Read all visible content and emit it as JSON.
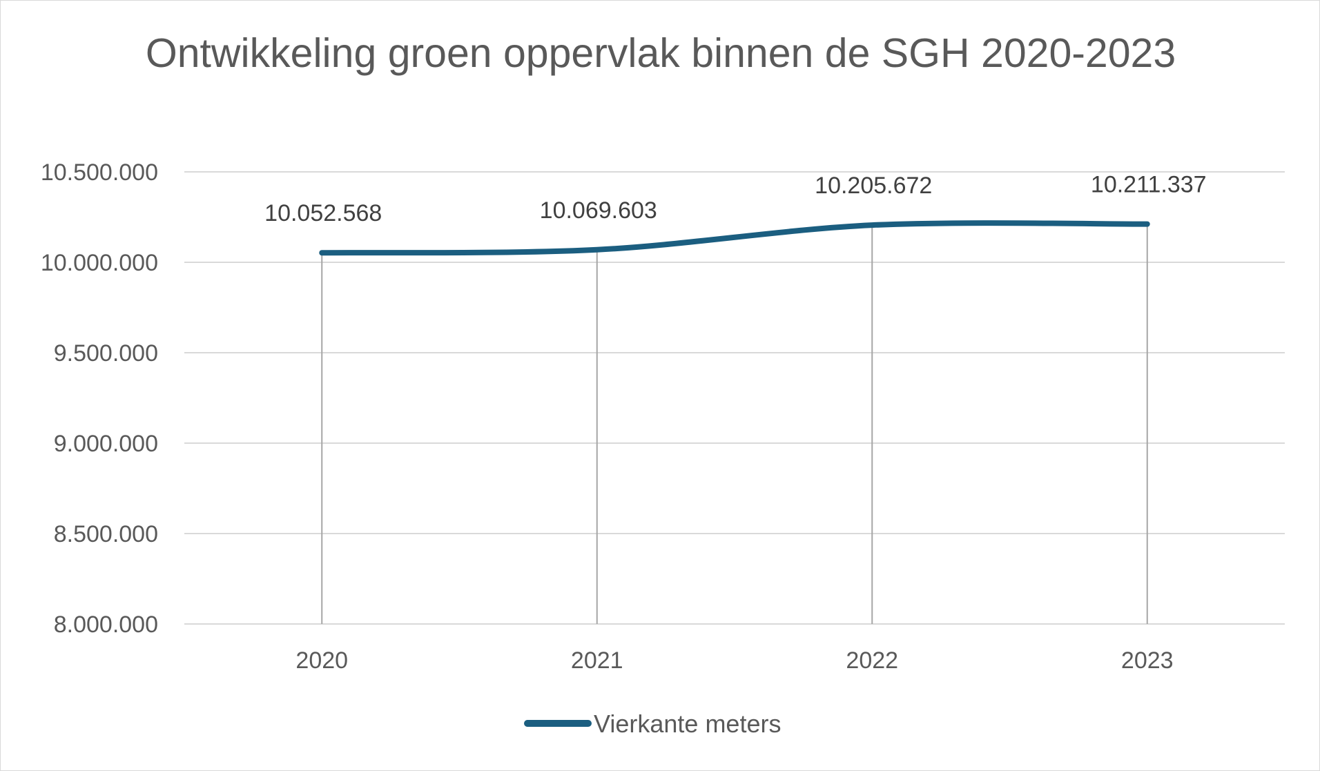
{
  "chart_data": {
    "type": "line",
    "title": "Ontwikkeling groen oppervlak binnen de SGH 2020-2023",
    "categories": [
      "2020",
      "2021",
      "2022",
      "2023"
    ],
    "series": [
      {
        "name": "Vierkante meters",
        "values": [
          10052568,
          10069603,
          10205672,
          10211337
        ],
        "labels": [
          "10.052.568",
          "10.069.603",
          "10.205.672",
          "10.211.337"
        ],
        "color": "#1b5e80"
      }
    ],
    "ylim": [
      8000000,
      10500000
    ],
    "yticks": [
      8000000,
      8500000,
      9000000,
      9500000,
      10000000,
      10500000
    ],
    "ytick_labels": [
      "8.000.000",
      "8.500.000",
      "9.000.000",
      "9.500.000",
      "10.000.000",
      "10.500.000"
    ],
    "xlabel": "",
    "ylabel": "",
    "grid": true,
    "drop_lines": true,
    "legend_position": "bottom"
  }
}
